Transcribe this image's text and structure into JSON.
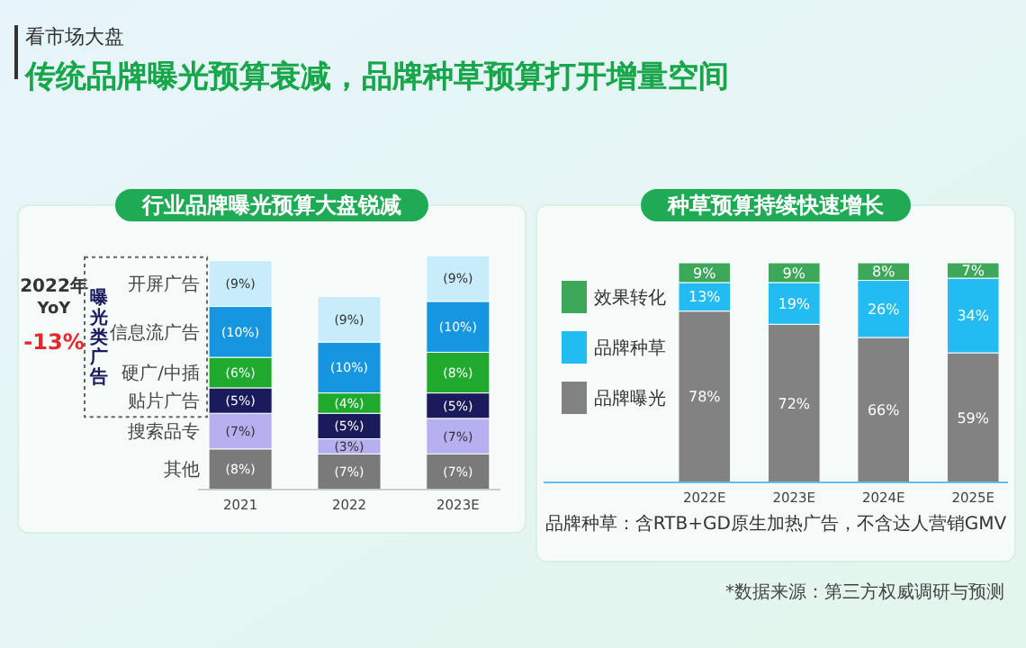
{
  "chart_data": [
    {
      "type": "other",
      "subtitle": "看市场大盘",
      "title": "传统品牌曝光预算衰减，品牌种草预算打开增量空间",
      "annotations": [
        "*数据来源：第三方权威调研与预测"
      ]
    },
    {
      "type": "bar",
      "stacked": true,
      "legend": false,
      "title": "行业品牌曝光预算大盘锐减",
      "categories": [
        "2021",
        "2022",
        "2023E"
      ],
      "series": [
        {
          "name": "其他",
          "color": "#7a7a7a",
          "values": [
            8,
            7,
            7
          ],
          "value_labels": [
            "(8%)",
            "(7%)",
            "(7%)"
          ]
        },
        {
          "name": "搜索品专",
          "color": "#b5b0f0",
          "values": [
            7,
            3,
            7
          ],
          "value_labels": [
            "(7%)",
            "(3%)",
            "(7%)"
          ]
        },
        {
          "name": "贴片广告",
          "color": "#1b1a5c",
          "values": [
            5,
            5,
            5
          ],
          "value_labels": [
            "(5%)",
            "(5%)",
            "(5%)"
          ]
        },
        {
          "name": "硬广/中插",
          "color": "#1faa2e",
          "values": [
            6,
            4,
            8
          ],
          "value_labels": [
            "(6%)",
            "(4%)",
            "(8%)"
          ]
        },
        {
          "name": "信息流广告",
          "color": "#1696e0",
          "values": [
            10,
            10,
            10
          ],
          "value_labels": [
            "(10%)",
            "(10%)",
            "(10%)"
          ]
        },
        {
          "name": "开屏广告",
          "color": "#c9ecfb",
          "values": [
            9,
            9,
            9
          ],
          "value_labels": [
            "(9%)",
            "(9%)",
            "(9%)"
          ]
        }
      ],
      "annotations": [
        "2022年",
        "YoY",
        "-13%",
        "曝光类广告"
      ]
    },
    {
      "type": "bar",
      "stacked": true,
      "legend": "top left",
      "title": "种草预算持续快速增长",
      "categories": [
        "2022E",
        "2023E",
        "2024E",
        "2025E"
      ],
      "series": [
        {
          "name": "品牌曝光",
          "color": "#828282",
          "values": [
            78,
            72,
            66,
            59
          ],
          "value_labels": [
            "78%",
            "72%",
            "66%",
            "59%"
          ]
        },
        {
          "name": "品牌种草",
          "color": "#22bcf2",
          "values": [
            13,
            19,
            26,
            34
          ],
          "value_labels": [
            "13%",
            "19%",
            "26%",
            "34%"
          ]
        },
        {
          "name": "效果转化",
          "color": "#3ea85a",
          "values": [
            9,
            9,
            8,
            7
          ],
          "value_labels": [
            "9%",
            "9%",
            "8%",
            "7%"
          ]
        }
      ],
      "annotations": [
        "品牌种草：含RTB+GD原生加热广告，不含达人营销GMV"
      ]
    }
  ]
}
